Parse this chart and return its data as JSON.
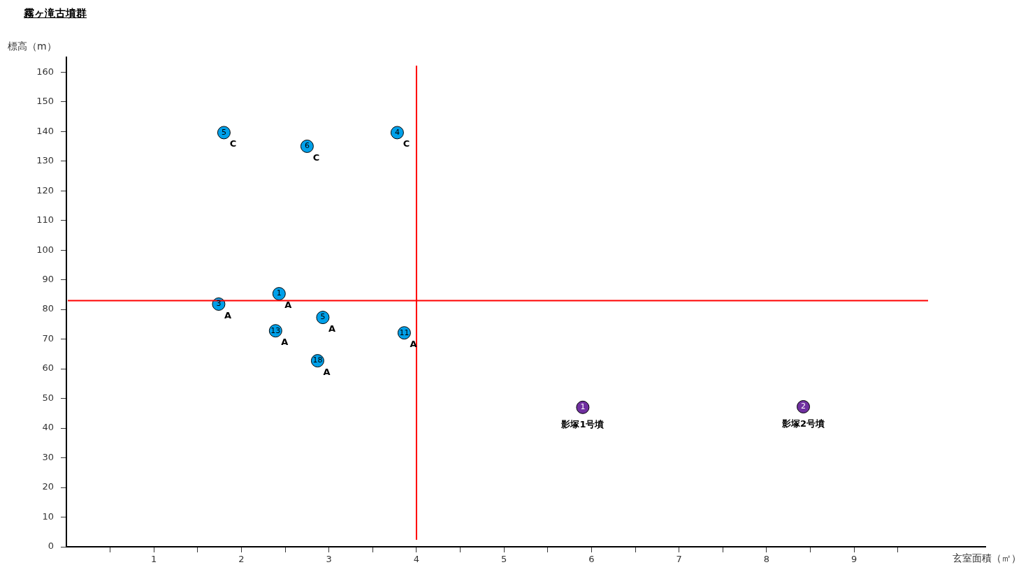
{
  "chart_data": {
    "type": "scatter",
    "title": "霧ヶ滝古墳群",
    "xlabel": "玄室面積（㎡）",
    "ylabel": "標高（m）",
    "series": [
      {
        "color": "#00a0e9",
        "x": [
          1.8,
          2.75,
          3.78,
          2.43,
          1.74,
          2.93,
          2.39,
          2.87,
          3.86
        ],
        "values": [
          139.6,
          135.0,
          139.6,
          85.3,
          81.8,
          77.3,
          72.8,
          62.7,
          72.1
        ]
      },
      {
        "color": "#7030a0",
        "x": [
          5.9,
          8.42
        ],
        "values": [
          47.0,
          47.2
        ]
      }
    ],
    "annotations": [
      {
        "text": "5",
        "x": 1.8,
        "y": 139.6
      },
      {
        "text": "C",
        "x": 1.8,
        "y": 139.6
      },
      {
        "text": "6",
        "x": 2.75,
        "y": 135.0
      },
      {
        "text": "C",
        "x": 2.75,
        "y": 135.0
      },
      {
        "text": "4",
        "x": 3.78,
        "y": 139.6
      },
      {
        "text": "C",
        "x": 3.78,
        "y": 139.6
      },
      {
        "text": "1",
        "x": 2.43,
        "y": 85.3
      },
      {
        "text": "A",
        "x": 2.43,
        "y": 85.3
      },
      {
        "text": "3",
        "x": 1.74,
        "y": 81.8
      },
      {
        "text": "A",
        "x": 1.74,
        "y": 81.8
      },
      {
        "text": "5",
        "x": 2.93,
        "y": 77.3
      },
      {
        "text": "A",
        "x": 2.93,
        "y": 77.3
      },
      {
        "text": "13",
        "x": 2.39,
        "y": 72.8
      },
      {
        "text": "A",
        "x": 2.39,
        "y": 72.8
      },
      {
        "text": "18",
        "x": 2.87,
        "y": 62.7
      },
      {
        "text": "A",
        "x": 2.87,
        "y": 62.7
      },
      {
        "text": "11",
        "x": 3.86,
        "y": 72.1
      },
      {
        "text": "A",
        "x": 3.86,
        "y": 72.1
      },
      {
        "text": "1",
        "x": 5.9,
        "y": 47.0
      },
      {
        "text": "影塚1号墳",
        "x": 5.9,
        "y": 47.0
      },
      {
        "text": "2",
        "x": 8.42,
        "y": 47.2
      },
      {
        "text": "影塚2号墳",
        "x": 8.42,
        "y": 47.2
      }
    ],
    "ref_lines": [
      {
        "axis": "x",
        "value": 4,
        "color": "#ff0000"
      },
      {
        "axis": "y",
        "value": 83,
        "color": "#ff0000"
      }
    ],
    "xlim": [
      0,
      10.5
    ],
    "xticks": [
      {
        "value": 0.5,
        "label": null
      },
      1,
      {
        "value": 1.5,
        "label": null
      },
      2,
      {
        "value": 2.5,
        "label": null
      },
      3,
      {
        "value": 3.5,
        "label": null
      },
      4,
      {
        "value": 4.5,
        "label": null
      },
      5,
      {
        "value": 5.5,
        "label": null
      },
      6,
      {
        "value": 6.5,
        "label": null
      },
      7,
      {
        "value": 7.5,
        "label": null
      },
      8,
      {
        "value": 8.5,
        "label": null
      },
      9,
      {
        "value": 9.5,
        "label": null
      }
    ],
    "ylim": [
      0,
      165
    ],
    "yticks": [
      0,
      10,
      20,
      30,
      40,
      50,
      60,
      70,
      80,
      90,
      100,
      110,
      120,
      130,
      140,
      150,
      160
    ],
    "grid": false,
    "legend": false,
    "marker": "circle"
  }
}
